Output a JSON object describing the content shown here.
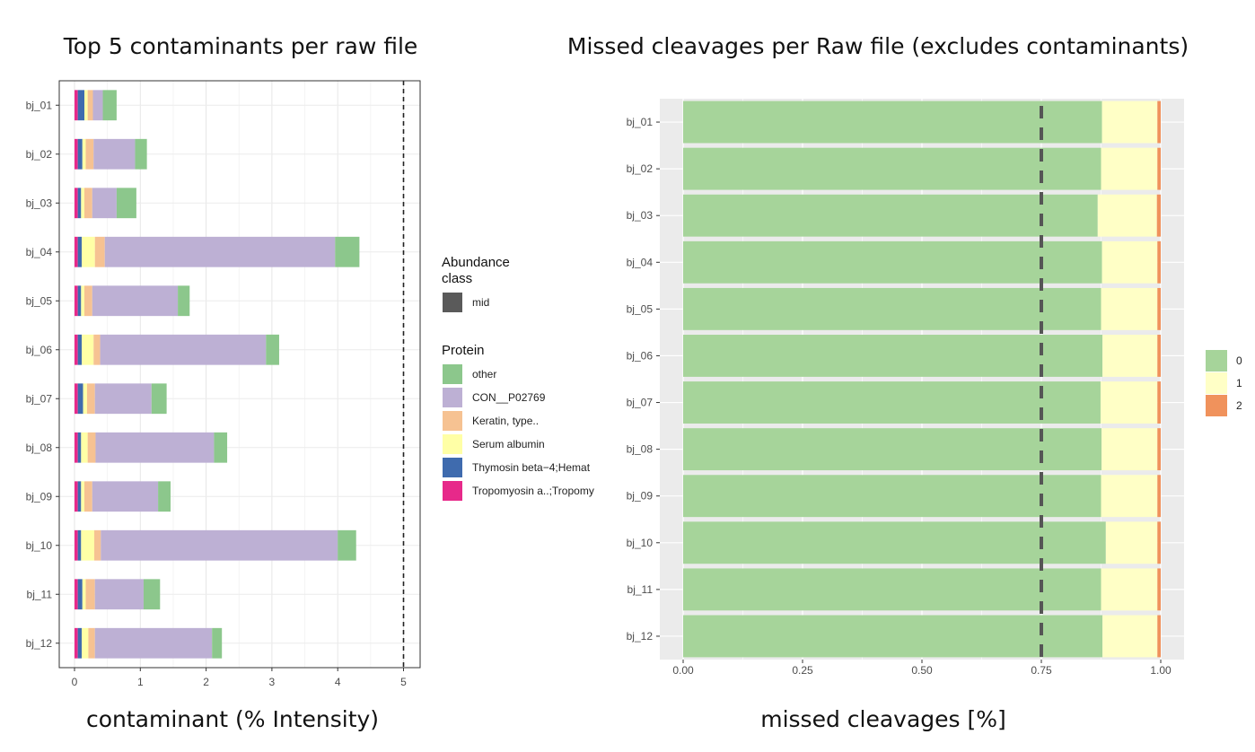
{
  "chart_data": [
    {
      "type": "bar",
      "stacked": true,
      "orientation": "horizontal",
      "title": "Top 5 contaminants per raw file",
      "xlabel": "contaminant (% Intensity)",
      "ylabel": "",
      "xlim": [
        0,
        5.2
      ],
      "xticks": [
        "0",
        "1",
        "2",
        "3",
        "4",
        "5"
      ],
      "threshold_line": 5,
      "grid": true,
      "categories": [
        "bj_01",
        "bj_02",
        "bj_03",
        "bj_04",
        "bj_05",
        "bj_06",
        "bj_07",
        "bj_08",
        "bj_09",
        "bj_10",
        "bj_11",
        "bj_12"
      ],
      "series": [
        {
          "name": "Tropomyosin a..;Tropomy",
          "color": "#E7298A",
          "values": [
            0.05,
            0.05,
            0.05,
            0.05,
            0.05,
            0.05,
            0.05,
            0.05,
            0.05,
            0.05,
            0.05,
            0.05
          ]
        },
        {
          "name": "Thymosin beta−4;Hemat",
          "color": "#3F6BAE",
          "values": [
            0.1,
            0.07,
            0.05,
            0.06,
            0.05,
            0.06,
            0.08,
            0.05,
            0.05,
            0.05,
            0.07,
            0.06
          ]
        },
        {
          "name": "Serum albumin",
          "color": "#FFFFA6",
          "values": [
            0.05,
            0.05,
            0.05,
            0.2,
            0.05,
            0.18,
            0.06,
            0.1,
            0.05,
            0.2,
            0.05,
            0.1
          ]
        },
        {
          "name": "Keratin, type..",
          "color": "#F6C292",
          "values": [
            0.08,
            0.12,
            0.12,
            0.15,
            0.12,
            0.1,
            0.12,
            0.12,
            0.12,
            0.1,
            0.14,
            0.1
          ]
        },
        {
          "name": "CON__P02769",
          "color": "#BDB0D4",
          "values": [
            0.15,
            0.63,
            0.37,
            3.5,
            1.3,
            2.52,
            0.86,
            1.8,
            1.0,
            3.6,
            0.74,
            1.78
          ]
        },
        {
          "name": "other",
          "color": "#8CC78C",
          "values": [
            0.21,
            0.18,
            0.3,
            0.37,
            0.18,
            0.2,
            0.23,
            0.2,
            0.19,
            0.28,
            0.25,
            0.15
          ]
        }
      ],
      "legend": {
        "placement": "right",
        "abundance_title": "Abundance class",
        "abundance_title_lines": [
          "Abundance",
          "class"
        ],
        "abundance_items": [
          {
            "name": "mid",
            "color": "#5A5A5A"
          }
        ],
        "protein_title": "Protein",
        "protein_items": [
          {
            "name": "other",
            "color": "#8CC78C"
          },
          {
            "name": "CON__P02769",
            "color": "#BDB0D4"
          },
          {
            "name": "Keratin, type..",
            "color": "#F6C292"
          },
          {
            "name": "Serum albumin",
            "color": "#FFFFA6"
          },
          {
            "name": "Thymosin beta−4;Hemat",
            "color": "#3F6BAE"
          },
          {
            "name": "Tropomyosin a..;Tropomy",
            "color": "#E7298A"
          }
        ]
      }
    },
    {
      "type": "bar",
      "stacked": true,
      "orientation": "horizontal",
      "title": "Missed cleavages per Raw file (excludes contaminants)",
      "xlabel": "missed cleavages [%]",
      "ylabel": "",
      "xlim": [
        0,
        1
      ],
      "xticks": [
        "0.00",
        "0.25",
        "0.50",
        "0.75",
        "1.00"
      ],
      "threshold_line": 0.75,
      "grid": true,
      "background": "#EBEBEB",
      "categories": [
        "bj_01",
        "bj_02",
        "bj_03",
        "bj_04",
        "bj_05",
        "bj_06",
        "bj_07",
        "bj_08",
        "bj_09",
        "bj_10",
        "bj_11",
        "bj_12"
      ],
      "series": [
        {
          "name": "0",
          "color": "#A6D49A",
          "values": [
            0.877,
            0.875,
            0.868,
            0.877,
            0.875,
            0.878,
            0.874,
            0.876,
            0.875,
            0.885,
            0.875,
            0.878
          ]
        },
        {
          "name": "1",
          "color": "#FFFFC6",
          "values": [
            0.116,
            0.118,
            0.124,
            0.116,
            0.118,
            0.115,
            0.119,
            0.117,
            0.118,
            0.108,
            0.118,
            0.115
          ]
        },
        {
          "name": "2",
          "color": "#F0925C",
          "values": [
            0.007,
            0.007,
            0.008,
            0.007,
            0.007,
            0.007,
            0.007,
            0.007,
            0.007,
            0.007,
            0.007,
            0.007
          ]
        }
      ],
      "legend": {
        "placement": "right",
        "items": [
          {
            "name": "0",
            "color": "#A6D49A"
          },
          {
            "name": "1",
            "color": "#FFFFC6"
          },
          {
            "name": "2",
            "color": "#F0925C"
          }
        ]
      }
    }
  ]
}
